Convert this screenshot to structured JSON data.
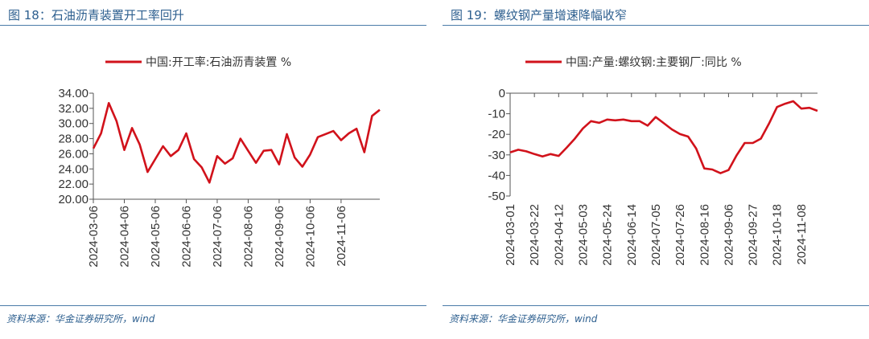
{
  "charts": {
    "left": {
      "title": "图 18：石油沥青装置开工率回升",
      "source": "资料来源：华金证券研究所，wind",
      "chart_data": {
        "type": "line",
        "title": "图 18：石油沥青装置开工率回升",
        "series": [
          {
            "name": "中国:开工率:石油沥青装置 %",
            "color": "#d1121b",
            "values": [
              26.7,
              28.7,
              32.7,
              30.3,
              26.5,
              29.4,
              27.2,
              23.6,
              25.3,
              27.0,
              25.7,
              26.5,
              28.7,
              25.3,
              24.2,
              22.2,
              25.7,
              24.7,
              25.4,
              28.0,
              26.4,
              24.8,
              26.4,
              26.5,
              24.6,
              28.6,
              25.5,
              24.3,
              25.9,
              28.2,
              28.6,
              29.0,
              27.8,
              28.7,
              29.3,
              26.2,
              31.0,
              31.8
            ]
          }
        ],
        "x_tick_labels": [
          "2024-03-06",
          "2024-04-06",
          "2024-05-06",
          "2024-06-06",
          "2024-07-06",
          "2024-08-06",
          "2024-09-06",
          "2024-10-06",
          "2024-11-06"
        ],
        "y_tick_labels": [
          "34.00",
          "32.00",
          "30.00",
          "28.00",
          "26.00",
          "24.00",
          "22.00",
          "20.00"
        ],
        "ylim": [
          20,
          34
        ],
        "grid": false,
        "legend": "top"
      }
    },
    "right": {
      "title": "图 19：螺纹钢产量增速降幅收窄",
      "source": "资料来源：华金证券研究所，wind",
      "chart_data": {
        "type": "line",
        "title": "图 19：螺纹钢产量增速降幅收窄",
        "series": [
          {
            "name": "中国:产量:螺纹钢:主要钢厂:同比 %",
            "color": "#d1121b",
            "values": [
              -28.8,
              -27.5,
              -28.3,
              -29.6,
              -30.8,
              -29.6,
              -30.5,
              -26.4,
              -22.1,
              -17.1,
              -13.6,
              -14.4,
              -12.8,
              -13.2,
              -12.8,
              -13.6,
              -13.6,
              -15.8,
              -11.6,
              -14.6,
              -17.6,
              -19.9,
              -21.1,
              -26.9,
              -36.6,
              -37.1,
              -38.9,
              -37.4,
              -30.2,
              -24.2,
              -24.2,
              -22.1,
              -14.8,
              -6.7,
              -5.1,
              -3.9,
              -7.5,
              -7.1,
              -8.6
            ]
          }
        ],
        "x_tick_labels": [
          "2024-03-01",
          "2024-03-22",
          "2024-04-12",
          "2024-05-03",
          "2024-05-24",
          "2024-06-14",
          "2024-07-05",
          "2024-07-26",
          "2024-08-16",
          "2024-09-06",
          "2024-09-27",
          "2024-10-18",
          "2024-11-08"
        ],
        "y_tick_labels": [
          "0",
          "-10",
          "-20",
          "-30",
          "-40",
          "-50"
        ],
        "ylim": [
          -50,
          0
        ],
        "grid": false,
        "legend": "top"
      }
    }
  }
}
